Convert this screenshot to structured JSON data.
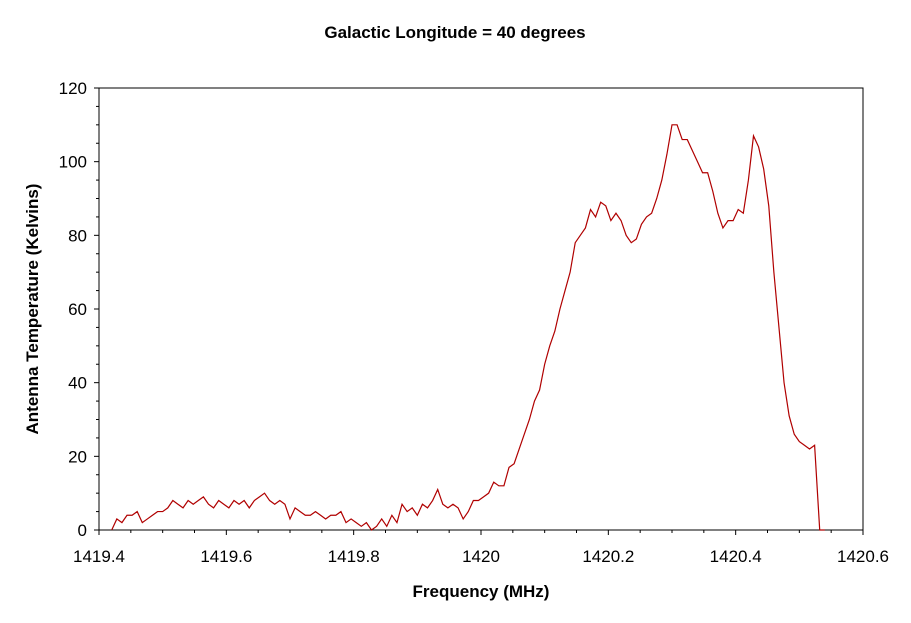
{
  "chart_data": {
    "type": "line",
    "title": "Galactic Longitude = 40 degrees",
    "xlabel": "Frequency (MHz)",
    "ylabel": "Antenna Temperature (Kelvins)",
    "xlim": [
      1419.4,
      1420.6
    ],
    "ylim": [
      0,
      120
    ],
    "x_ticks": [
      1419.4,
      1419.6,
      1419.8,
      1420,
      1420.2,
      1420.4,
      1420.6
    ],
    "x_tick_labels": [
      "1419.4",
      "1419.6",
      "1419.8",
      "1420",
      "1420.2",
      "1420.4",
      "1420.6"
    ],
    "y_ticks": [
      0,
      20,
      40,
      60,
      80,
      100,
      120
    ],
    "y_tick_labels": [
      "0",
      "20",
      "40",
      "60",
      "80",
      "100",
      "120"
    ],
    "grid": false,
    "series_color": "#b00000",
    "series": [
      {
        "x": [
          1419.42,
          1419.428,
          1419.436,
          1419.444,
          1419.452,
          1419.46,
          1419.468,
          1419.476,
          1419.484,
          1419.492,
          1419.5,
          1419.508,
          1419.516,
          1419.524,
          1419.532,
          1419.54,
          1419.548,
          1419.556,
          1419.564,
          1419.572,
          1419.58,
          1419.588,
          1419.596,
          1419.604,
          1419.612,
          1419.62,
          1419.628,
          1419.636,
          1419.644,
          1419.652,
          1419.66,
          1419.668,
          1419.676,
          1419.684,
          1419.692,
          1419.7,
          1419.708,
          1419.716,
          1419.724,
          1419.732,
          1419.74,
          1419.748,
          1419.756,
          1419.764,
          1419.772,
          1419.78,
          1419.788,
          1419.796,
          1419.804,
          1419.812,
          1419.82,
          1419.828,
          1419.836,
          1419.844,
          1419.852,
          1419.86,
          1419.868,
          1419.876,
          1419.884,
          1419.892,
          1419.9,
          1419.908,
          1419.916,
          1419.924,
          1419.932,
          1419.94,
          1419.948,
          1419.956,
          1419.964,
          1419.972,
          1419.98,
          1419.988,
          1419.996,
          1420.004,
          1420.012,
          1420.02,
          1420.028,
          1420.036,
          1420.044,
          1420.052,
          1420.06,
          1420.068,
          1420.076,
          1420.084,
          1420.092,
          1420.1,
          1420.108,
          1420.116,
          1420.124,
          1420.132,
          1420.14,
          1420.148,
          1420.156,
          1420.164,
          1420.172,
          1420.18,
          1420.188,
          1420.196,
          1420.204,
          1420.212,
          1420.22,
          1420.228,
          1420.236,
          1420.244,
          1420.252,
          1420.26,
          1420.268,
          1420.276,
          1420.284,
          1420.292,
          1420.3,
          1420.308,
          1420.316,
          1420.324,
          1420.332,
          1420.34,
          1420.348,
          1420.356,
          1420.364,
          1420.372,
          1420.38,
          1420.388,
          1420.396,
          1420.404,
          1420.412,
          1420.42,
          1420.428,
          1420.436,
          1420.444,
          1420.452,
          1420.46,
          1420.468,
          1420.476,
          1420.484,
          1420.492,
          1420.5,
          1420.508,
          1420.516,
          1420.524,
          1420.532,
          1420.54
        ],
        "y": [
          0,
          3,
          2,
          4,
          4,
          5,
          2,
          3,
          4,
          5,
          5,
          6,
          8,
          7,
          6,
          8,
          7,
          8,
          9,
          7,
          6,
          8,
          7,
          6,
          8,
          7,
          8,
          6,
          8,
          9,
          10,
          8,
          7,
          8,
          7,
          3,
          6,
          5,
          4,
          4,
          5,
          4,
          3,
          4,
          4,
          5,
          2,
          3,
          2,
          1,
          2,
          0,
          1,
          3,
          1,
          4,
          2,
          7,
          5,
          6,
          4,
          7,
          6,
          8,
          11,
          7,
          6,
          7,
          6,
          3,
          5,
          8,
          8,
          9,
          10,
          13,
          12,
          12,
          17,
          18,
          22,
          26,
          30,
          35,
          38,
          45,
          50,
          54,
          60,
          65,
          70,
          78,
          80,
          82,
          87,
          85,
          89,
          88,
          84,
          86,
          84,
          80,
          78,
          79,
          83,
          85,
          86,
          90,
          95,
          102,
          110,
          110,
          106,
          106,
          103,
          100,
          97,
          97,
          92,
          86,
          82,
          84,
          84,
          87,
          86,
          95,
          107,
          104,
          98,
          88,
          70,
          55,
          40,
          31,
          26,
          24,
          23,
          22,
          23,
          0,
          0
        ]
      }
    ]
  }
}
